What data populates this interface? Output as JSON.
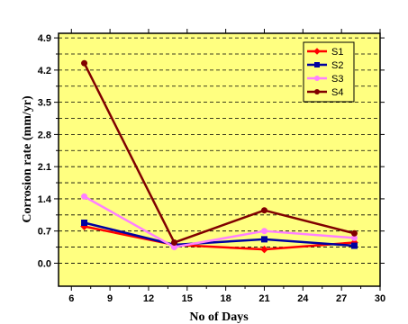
{
  "chart_data": {
    "type": "line",
    "title": "",
    "xlabel": "No of Days",
    "ylabel": "Corrosion rate (mm/yr)",
    "x": [
      7,
      14,
      21,
      28
    ],
    "xlim": [
      5,
      30
    ],
    "ylim": [
      -0.5,
      5.0
    ],
    "xticks": [
      "6",
      "9",
      "12",
      "15",
      "18",
      "21",
      "24",
      "27",
      "30"
    ],
    "yticks": [
      "0.0",
      "0.7",
      "1.4",
      "2.1",
      "2.8",
      "3.5",
      "4.2",
      "4.9"
    ],
    "grid": true,
    "legend_position": "top-right",
    "background_color": "#FFFF80",
    "series": [
      {
        "name": "S1",
        "color": "#FF0000",
        "marker": "diamond",
        "values": [
          0.8,
          0.4,
          0.3,
          0.45
        ]
      },
      {
        "name": "S2",
        "color": "#0000A0",
        "marker": "square",
        "values": [
          0.88,
          0.4,
          0.52,
          0.38
        ]
      },
      {
        "name": "S3",
        "color": "#FF80FF",
        "marker": "circle",
        "values": [
          1.45,
          0.35,
          0.7,
          0.55
        ]
      },
      {
        "name": "S4",
        "color": "#800000",
        "marker": "circle",
        "values": [
          4.35,
          0.45,
          1.15,
          0.65
        ]
      }
    ]
  }
}
